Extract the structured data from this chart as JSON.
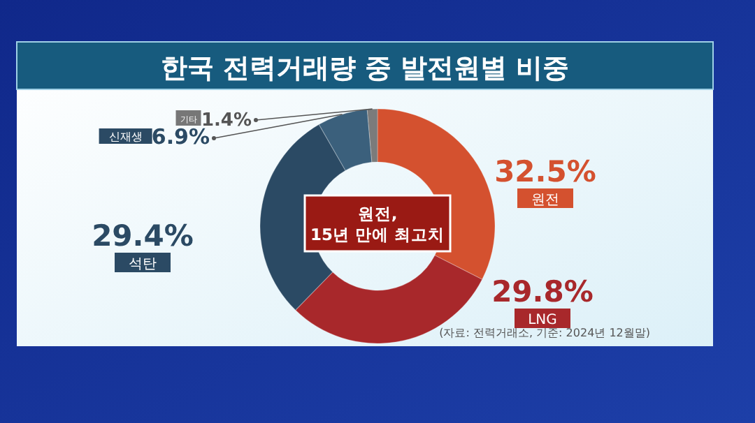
{
  "chart_data": {
    "type": "donut",
    "title": "한국 전력거래량 중 발전원별 비중",
    "categories": [
      "원전",
      "LNG",
      "석탄",
      "신재생",
      "기타"
    ],
    "values": [
      32.5,
      29.8,
      29.4,
      6.9,
      1.4
    ],
    "colors": [
      "#d4512f",
      "#a8282b",
      "#2b4a64",
      "#3b607c",
      "#7b7b7b"
    ],
    "value_labels": [
      "32.5%",
      "29.8%",
      "29.4%",
      "6.9%",
      "1.4%"
    ],
    "annotations": [
      "원전,\n15년 만에 최고치",
      "(자료: 전력거래소, 기준: 2024년 12월말)"
    ]
  }
}
